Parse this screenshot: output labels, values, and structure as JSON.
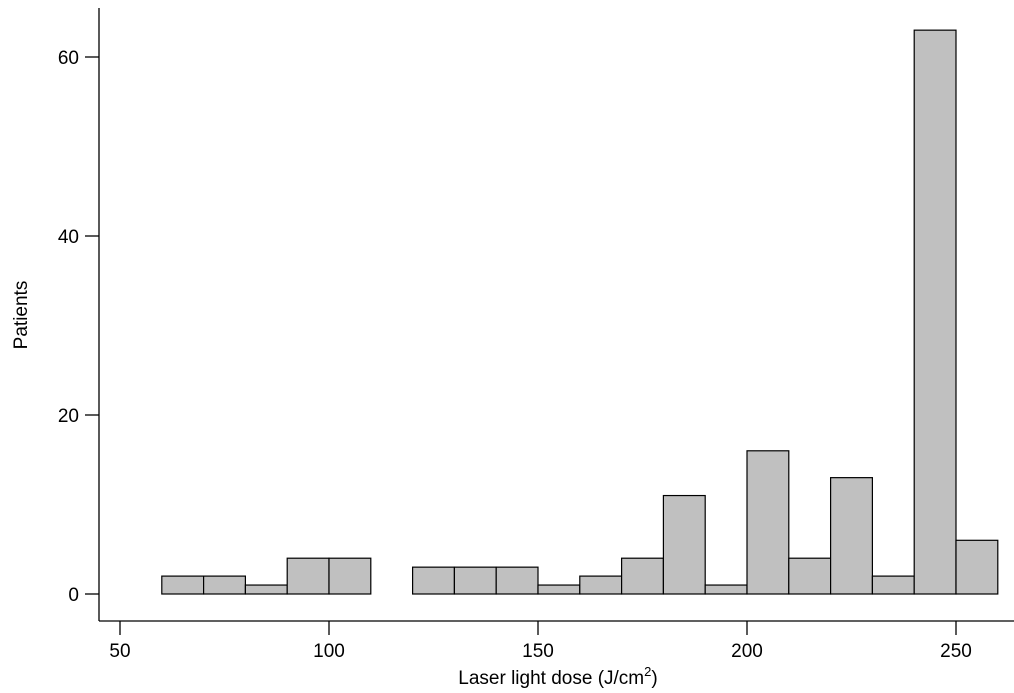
{
  "chart_data": {
    "type": "bar",
    "subtype": "histogram",
    "bin_width": 10,
    "bins": [
      {
        "start": 60,
        "end": 70,
        "count": 2
      },
      {
        "start": 70,
        "end": 80,
        "count": 2
      },
      {
        "start": 80,
        "end": 90,
        "count": 1
      },
      {
        "start": 90,
        "end": 100,
        "count": 4
      },
      {
        "start": 100,
        "end": 110,
        "count": 4
      },
      {
        "start": 110,
        "end": 120,
        "count": 0
      },
      {
        "start": 120,
        "end": 130,
        "count": 3
      },
      {
        "start": 130,
        "end": 140,
        "count": 3
      },
      {
        "start": 140,
        "end": 150,
        "count": 3
      },
      {
        "start": 150,
        "end": 160,
        "count": 1
      },
      {
        "start": 160,
        "end": 170,
        "count": 2
      },
      {
        "start": 170,
        "end": 180,
        "count": 4
      },
      {
        "start": 180,
        "end": 190,
        "count": 11
      },
      {
        "start": 190,
        "end": 200,
        "count": 1
      },
      {
        "start": 200,
        "end": 210,
        "count": 16
      },
      {
        "start": 210,
        "end": 220,
        "count": 4
      },
      {
        "start": 220,
        "end": 230,
        "count": 13
      },
      {
        "start": 230,
        "end": 240,
        "count": 2
      },
      {
        "start": 240,
        "end": 250,
        "count": 63
      },
      {
        "start": 250,
        "end": 260,
        "count": 6
      }
    ],
    "xlabel": "Laser light dose (J/cm",
    "xlabel_superscript": "2",
    "xlabel_suffix": ")",
    "ylabel": "Patients",
    "xlim": [
      50,
      260
    ],
    "ylim": [
      0,
      65
    ],
    "xticks": [
      "50",
      "100",
      "150",
      "200",
      "250"
    ],
    "yticks": [
      "0",
      "20",
      "40",
      "60"
    ],
    "grid": false,
    "bar_color": "#c0c0c0",
    "edge_color": "#000000"
  }
}
